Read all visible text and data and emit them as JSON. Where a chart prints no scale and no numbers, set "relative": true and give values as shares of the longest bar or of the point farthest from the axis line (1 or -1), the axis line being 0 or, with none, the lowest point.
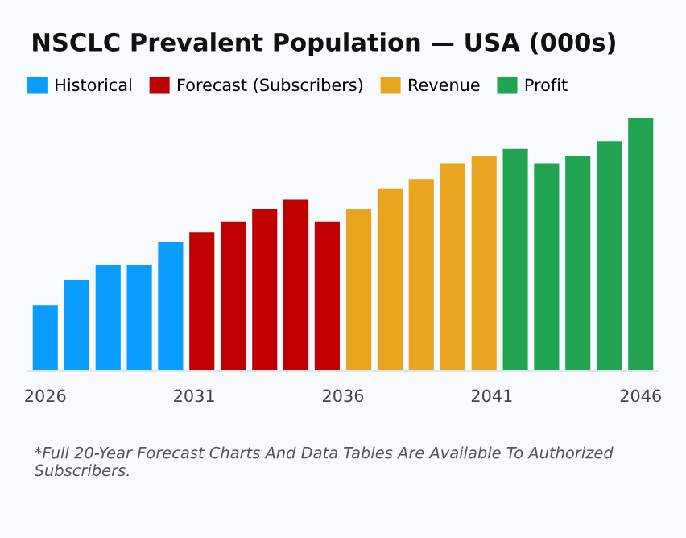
{
  "chart_data": {
    "type": "bar",
    "title": "NSCLC Prevalent Population — USA (000s)",
    "relative": true,
    "x": [
      2026,
      2027.05,
      2028.11,
      2029.16,
      2030.21,
      2031.26,
      2032.32,
      2033.37,
      2034.42,
      2035.47,
      2036.53,
      2037.58,
      2038.63,
      2039.68,
      2040.74,
      2041.79,
      2042.84,
      2043.89,
      2044.95,
      2046
    ],
    "xlim": [
      2025.4,
      2046.6
    ],
    "xticks": [
      2026,
      2031,
      2036,
      2041,
      2046
    ],
    "series": [
      {
        "name": "Historical",
        "color": "#0a9cff",
        "values": [
          0.26,
          0.36,
          0.42,
          0.42,
          0.51,
          null,
          null,
          null,
          null,
          null,
          null,
          null,
          null,
          null,
          null,
          null,
          null,
          null,
          null,
          null
        ]
      },
      {
        "name": "Forecast (Subscribers)",
        "color": "#c00000",
        "values": [
          null,
          null,
          null,
          null,
          null,
          0.55,
          0.59,
          0.64,
          0.68,
          0.59,
          null,
          null,
          null,
          null,
          null,
          null,
          null,
          null,
          null,
          null
        ]
      },
      {
        "name": "Revenue",
        "color": "#eaa520",
        "values": [
          null,
          null,
          null,
          null,
          null,
          null,
          null,
          null,
          null,
          null,
          0.64,
          0.72,
          0.76,
          0.82,
          0.85,
          null,
          null,
          null,
          null,
          null
        ]
      },
      {
        "name": "Profit",
        "color": "#22a350",
        "values": [
          null,
          null,
          null,
          null,
          null,
          null,
          null,
          null,
          null,
          null,
          null,
          null,
          null,
          null,
          null,
          0.88,
          0.82,
          0.85,
          0.91,
          1
        ]
      }
    ],
    "legend": "top",
    "grid": false,
    "tick_labels": "x",
    "annotations": [
      "*Full 20-Year Forecast Charts And Data Tables Are Available To Authorized Subscribers."
    ]
  }
}
